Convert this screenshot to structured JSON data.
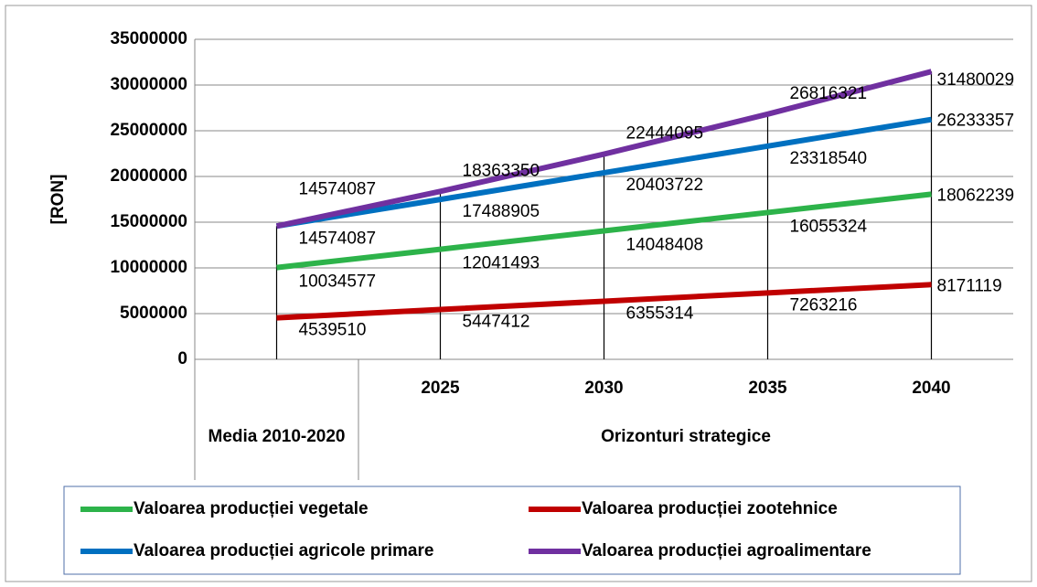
{
  "chart_data": {
    "type": "line",
    "ylabel": "[RON]",
    "categories": [
      null,
      "2025",
      "2030",
      "2035",
      "2040"
    ],
    "category_groups": [
      {
        "label": "Media 2010-2020",
        "count": 1
      },
      {
        "label": "Orizonturi strategice",
        "count": 4
      }
    ],
    "series": [
      {
        "name": "Valoarea producției vegetale",
        "color": "#2db34a",
        "values": [
          10034577,
          12041493,
          14048408,
          16055324,
          18062239
        ]
      },
      {
        "name": "Valoarea producției zootehnice",
        "color": "#c00000",
        "values": [
          4539510,
          5447412,
          6355314,
          7263216,
          8171119
        ]
      },
      {
        "name": "Valoarea producției agricole primare",
        "color": "#0070c0",
        "values": [
          14574087,
          17488905,
          20403722,
          23318540,
          26233357
        ]
      },
      {
        "name": "Valoarea producției agroalimentare",
        "color": "#7030a0",
        "values": [
          14574087,
          18363350,
          22444095,
          26816321,
          31480029
        ]
      }
    ],
    "ylim": [
      0,
      35000000
    ],
    "yticks": [
      0,
      5000000,
      10000000,
      15000000,
      20000000,
      25000000,
      30000000,
      35000000
    ],
    "grid": true,
    "drop_lines": true,
    "legend": "bottom"
  }
}
